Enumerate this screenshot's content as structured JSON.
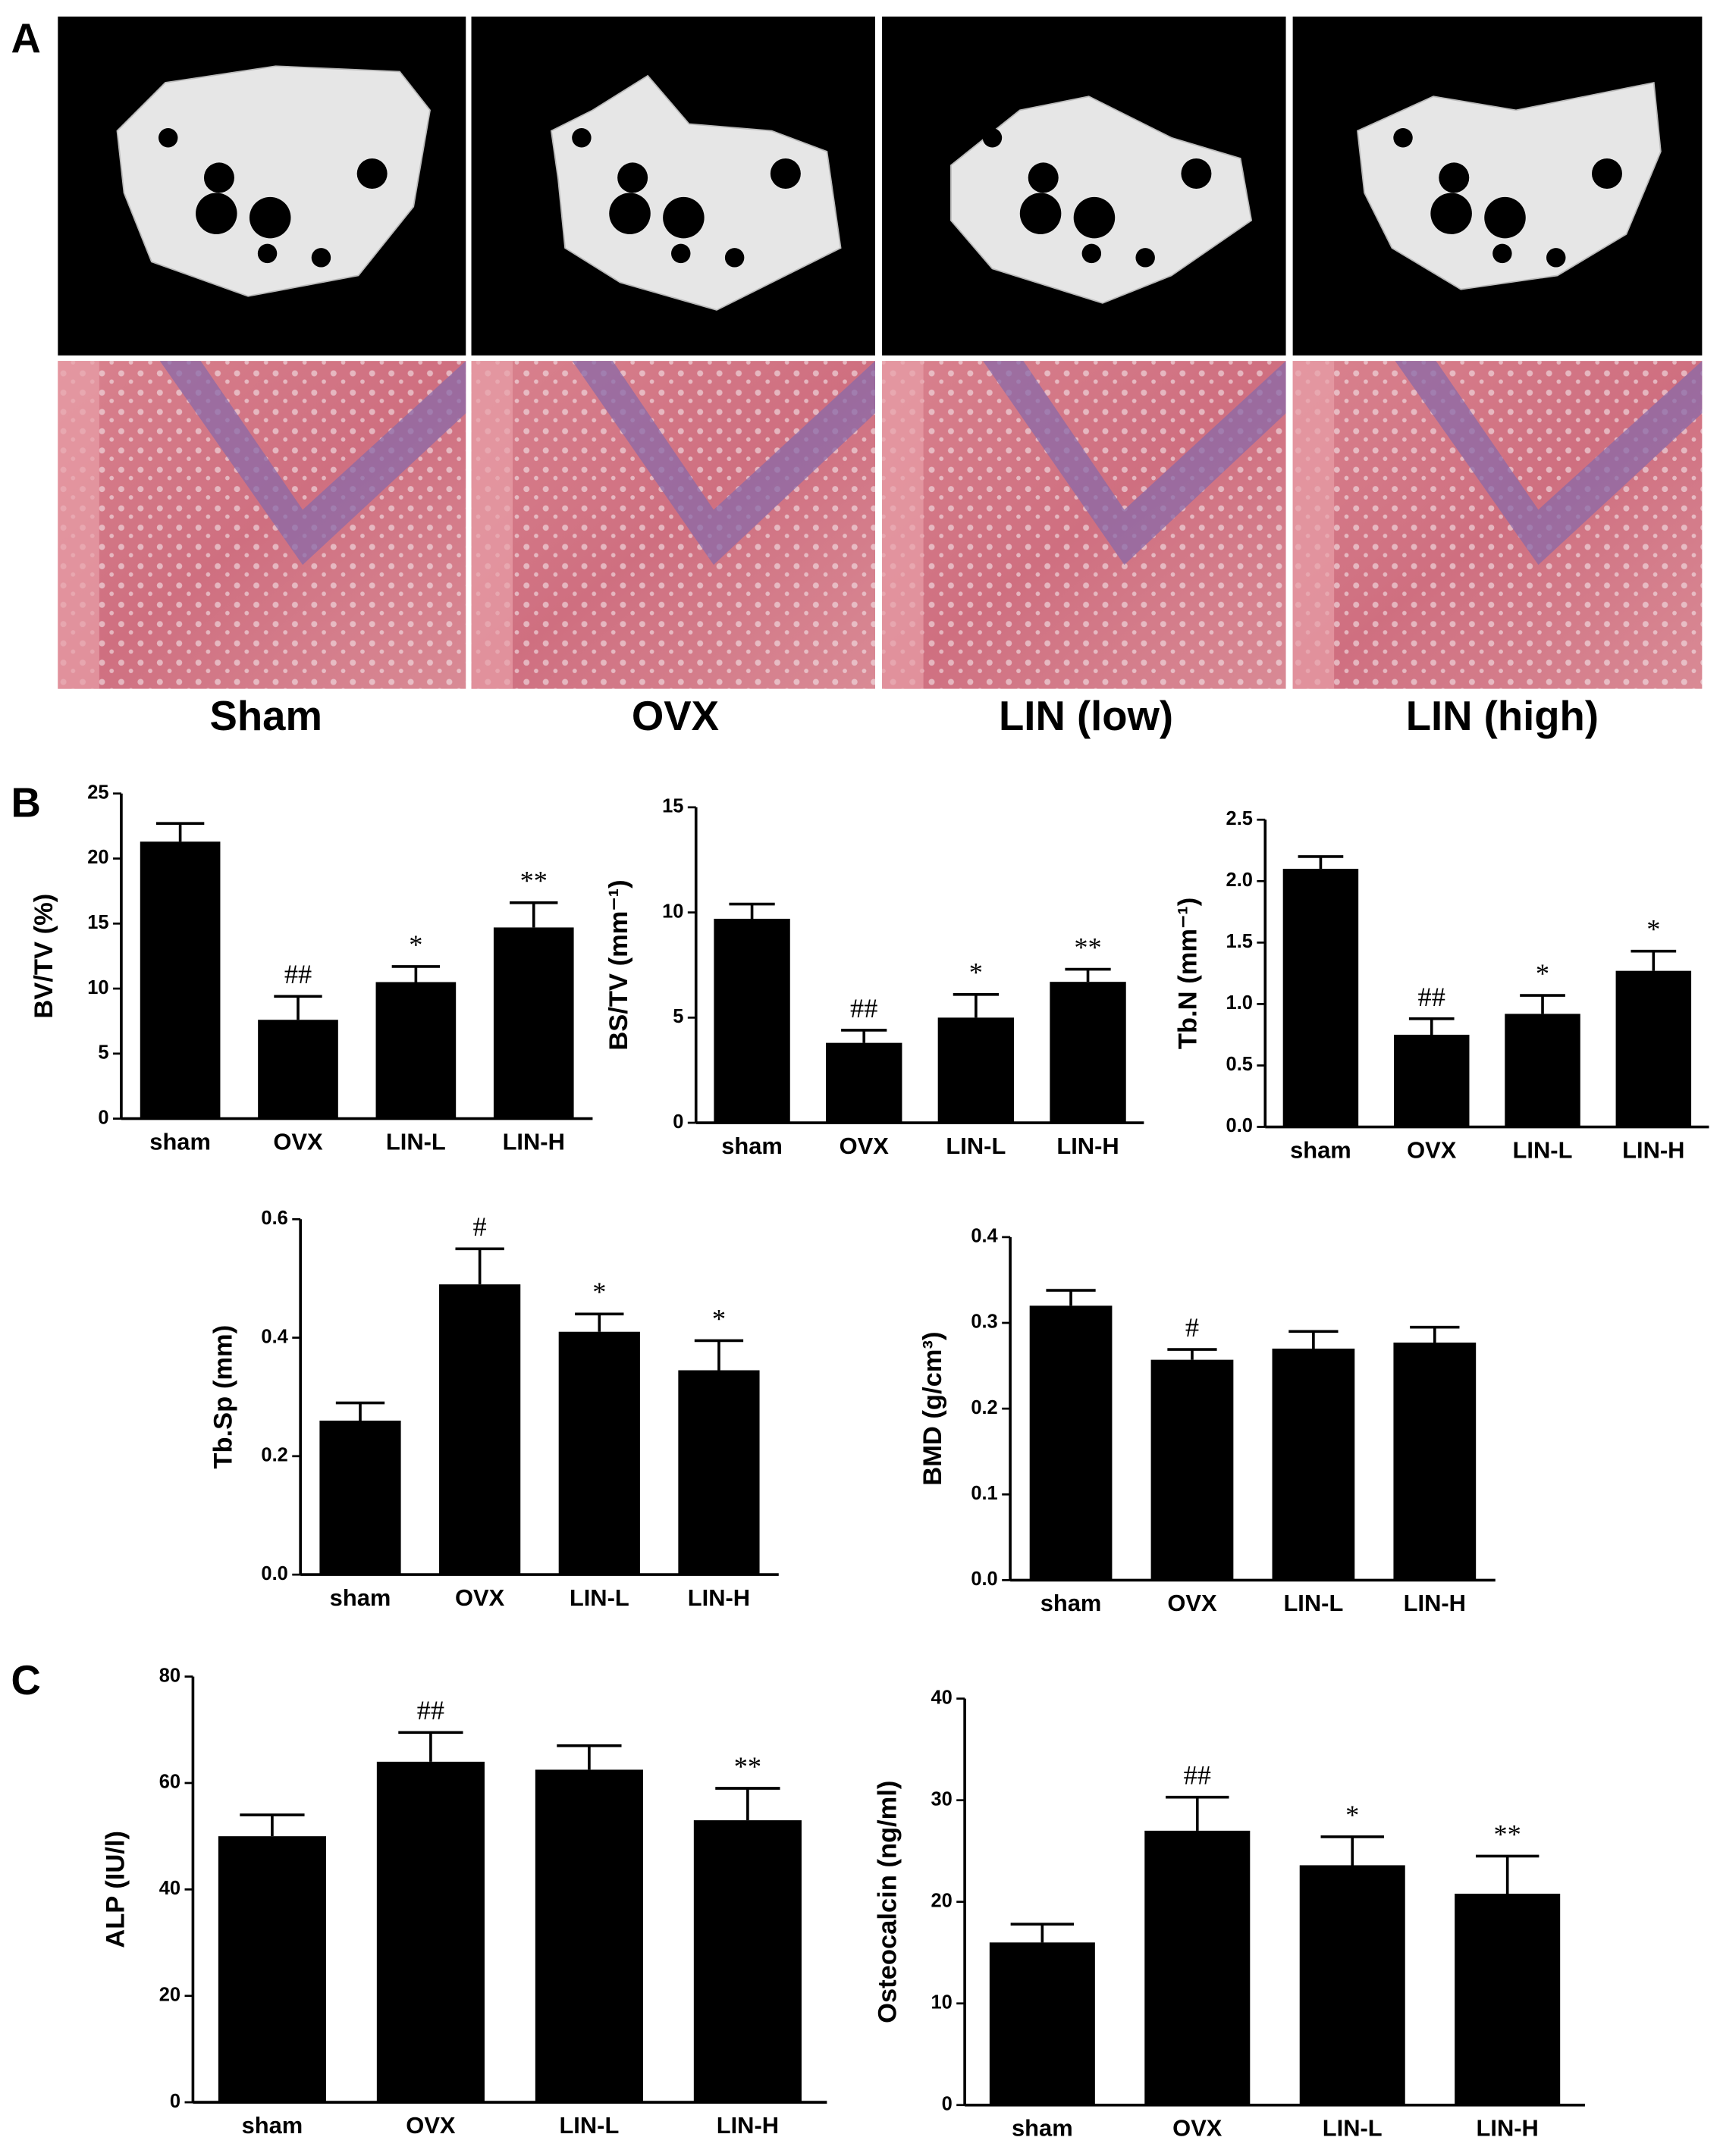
{
  "figure": {
    "panel_labels": [
      "A",
      "B",
      "C"
    ],
    "image_labels": [
      "Sham",
      "OVX",
      "LIN (low)",
      "LIN (high)"
    ]
  },
  "chart_data": [
    {
      "type": "bar",
      "ylabel": "BV/TV (%)",
      "categories": [
        "sham",
        "OVX",
        "LIN-L",
        "LIN-H"
      ],
      "values": [
        21.3,
        7.6,
        10.5,
        14.7
      ],
      "errors": [
        1.4,
        1.8,
        1.2,
        1.9
      ],
      "annotations": [
        null,
        "##",
        "*",
        "**"
      ],
      "color": "#000000",
      "ylim": [
        0,
        25
      ],
      "yticks": [
        0,
        5,
        10,
        15,
        20,
        25
      ]
    },
    {
      "type": "bar",
      "ylabel": "BS/TV (mm⁻¹)",
      "categories": [
        "sham",
        "OVX",
        "LIN-L",
        "LIN-H"
      ],
      "values": [
        9.7,
        3.8,
        5.0,
        6.7
      ],
      "errors": [
        0.7,
        0.6,
        1.1,
        0.6
      ],
      "annotations": [
        null,
        "##",
        "*",
        "**"
      ],
      "color": "#000000",
      "ylim": [
        0,
        15
      ],
      "yticks": [
        0,
        5,
        10,
        15
      ]
    },
    {
      "type": "bar",
      "ylabel": "Tb.N (mm⁻¹)",
      "categories": [
        "sham",
        "OVX",
        "LIN-L",
        "LIN-H"
      ],
      "values": [
        2.1,
        0.75,
        0.92,
        1.27
      ],
      "errors": [
        0.1,
        0.13,
        0.15,
        0.16
      ],
      "annotations": [
        null,
        "##",
        "*",
        "*"
      ],
      "color": "#000000",
      "ylim": [
        0,
        2.5
      ],
      "yticks": [
        {
          "value": 0,
          "label": "0.0"
        },
        0.5,
        {
          "value": 1,
          "label": "1.0"
        },
        1.5,
        {
          "value": 2,
          "label": "2.0"
        },
        2.5
      ]
    },
    {
      "type": "bar",
      "ylabel": "Tb.Sp (mm)",
      "categories": [
        "sham",
        "OVX",
        "LIN-L",
        "LIN-H"
      ],
      "values": [
        0.26,
        0.49,
        0.41,
        0.345
      ],
      "errors": [
        0.03,
        0.06,
        0.03,
        0.05
      ],
      "annotations": [
        null,
        "#",
        "*",
        "*"
      ],
      "color": "#000000",
      "ylim": [
        0,
        0.6
      ],
      "yticks": [
        {
          "value": 0,
          "label": "0.0"
        },
        0.2,
        0.4,
        0.6
      ]
    },
    {
      "type": "bar",
      "ylabel": "BMD (g/cm³)",
      "categories": [
        "sham",
        "OVX",
        "LIN-L",
        "LIN-H"
      ],
      "values": [
        0.32,
        0.257,
        0.27,
        0.277
      ],
      "errors": [
        0.018,
        0.012,
        0.02,
        0.018
      ],
      "annotations": [
        null,
        "#",
        null,
        null
      ],
      "color": "#000000",
      "ylim": [
        0,
        0.4
      ],
      "yticks": [
        {
          "value": 0,
          "label": "0.0"
        },
        0.1,
        0.2,
        0.3,
        0.4
      ]
    },
    {
      "type": "bar",
      "ylabel": "ALP (IU/l)",
      "categories": [
        "sham",
        "OVX",
        "LIN-L",
        "LIN-H"
      ],
      "values": [
        50,
        64,
        62.5,
        53
      ],
      "errors": [
        4,
        5.5,
        4.5,
        6
      ],
      "annotations": [
        null,
        "##",
        null,
        "**"
      ],
      "color": "#000000",
      "ylim": [
        0,
        80
      ],
      "yticks": [
        0,
        20,
        40,
        60,
        80
      ]
    },
    {
      "type": "bar",
      "ylabel": "Osteocalcin (ng/ml)",
      "categories": [
        "sham",
        "OVX",
        "LIN-L",
        "LIN-H"
      ],
      "values": [
        16,
        27,
        23.6,
        20.8
      ],
      "errors": [
        1.8,
        3.3,
        2.8,
        3.7
      ],
      "annotations": [
        null,
        "##",
        "*",
        "**"
      ],
      "color": "#000000",
      "ylim": [
        0,
        40
      ],
      "yticks": [
        0,
        10,
        20,
        30,
        40
      ]
    }
  ]
}
